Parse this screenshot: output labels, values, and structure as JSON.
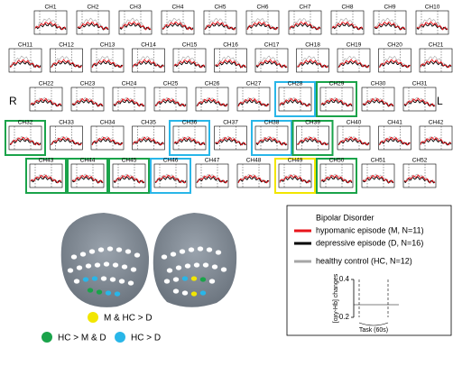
{
  "side_labels": {
    "right": "R",
    "left": "L"
  },
  "channels": [
    {
      "label": "CH1"
    },
    {
      "label": "CH2"
    },
    {
      "label": "CH3"
    },
    {
      "label": "CH4"
    },
    {
      "label": "CH5"
    },
    {
      "label": "CH6"
    },
    {
      "label": "CH7"
    },
    {
      "label": "CH8"
    },
    {
      "label": "CH9"
    },
    {
      "label": "CH10"
    },
    {
      "label": "CH11"
    },
    {
      "label": "CH12"
    },
    {
      "label": "CH13"
    },
    {
      "label": "CH14"
    },
    {
      "label": "CH15"
    },
    {
      "label": "CH16"
    },
    {
      "label": "CH17"
    },
    {
      "label": "CH18"
    },
    {
      "label": "CH19"
    },
    {
      "label": "CH20"
    },
    {
      "label": "CH21"
    },
    {
      "label": "CH22"
    },
    {
      "label": "CH23"
    },
    {
      "label": "CH24"
    },
    {
      "label": "CH25"
    },
    {
      "label": "CH26"
    },
    {
      "label": "CH27"
    },
    {
      "label": "CH28",
      "highlight": "#29b6e8"
    },
    {
      "label": "CH29",
      "highlight": "#1aa34a"
    },
    {
      "label": "CH30"
    },
    {
      "label": "CH31"
    },
    {
      "label": "CH32",
      "highlight": "#1aa34a"
    },
    {
      "label": "CH33"
    },
    {
      "label": "CH34"
    },
    {
      "label": "CH35"
    },
    {
      "label": "CH36",
      "highlight": "#29b6e8"
    },
    {
      "label": "CH37"
    },
    {
      "label": "CH38",
      "highlight": "#29b6e8"
    },
    {
      "label": "CH39",
      "highlight": "#1aa34a"
    },
    {
      "label": "CH40"
    },
    {
      "label": "CH41"
    },
    {
      "label": "CH42"
    },
    {
      "label": "CH43",
      "highlight": "#1aa34a"
    },
    {
      "label": "CH44",
      "highlight": "#1aa34a"
    },
    {
      "label": "CH45",
      "highlight": "#1aa34a"
    },
    {
      "label": "CH46",
      "highlight": "#29b6e8"
    },
    {
      "label": "CH47"
    },
    {
      "label": "CH48"
    },
    {
      "label": "CH49",
      "highlight": "#f2e600"
    },
    {
      "label": "CH50",
      "highlight": "#1aa34a"
    },
    {
      "label": "CH51"
    },
    {
      "label": "CH52"
    }
  ],
  "legend": {
    "title": "Bipolar Disorder",
    "items": [
      {
        "label": "hypomanic episode (M, N=11)",
        "color": "#e8141b"
      },
      {
        "label": "depressive episode (D, N=16)",
        "color": "#000000"
      },
      {
        "label": "healthy control (HC, N=12)",
        "color": "#a6a6a6"
      }
    ]
  },
  "scale": {
    "label": "[oxy-Hb] changes",
    "ticks": [
      0.4,
      -0.2
    ],
    "task": "Task (60s)"
  },
  "brain_legend": [
    {
      "label": "M & HC > D",
      "color": "#f2e600"
    },
    {
      "label": "HC > M & D",
      "color": "#1aa34a"
    },
    {
      "label": "HC > D",
      "color": "#29b6e8"
    }
  ]
}
